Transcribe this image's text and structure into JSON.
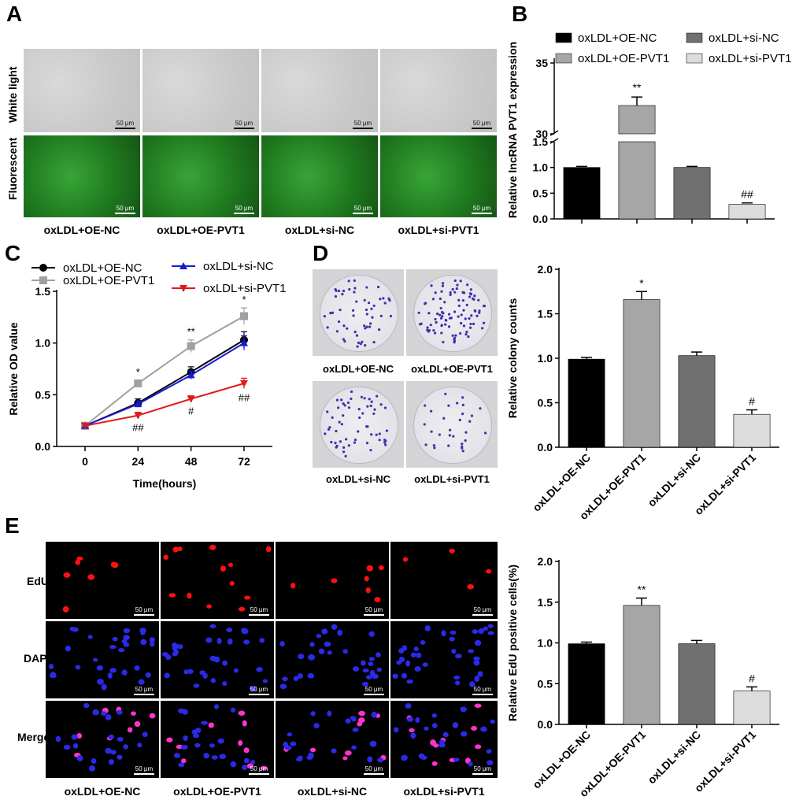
{
  "panels": {
    "A": {
      "label": "A",
      "rows": [
        "White light",
        "Fluorescent"
      ],
      "groups": [
        "oxLDL+OE-NC",
        "oxLDL+OE-PVT1",
        "oxLDL+si-NC",
        "oxLDL+si-PVT1"
      ],
      "scale_bar": "50 μm"
    },
    "B": {
      "label": "B"
    },
    "C": {
      "label": "C"
    },
    "D": {
      "label": "D",
      "dish_labels": [
        "oxLDL+OE-NC",
        "oxLDL+OE-PVT1",
        "oxLDL+si-NC",
        "oxLDL+si-PVT1"
      ]
    },
    "E": {
      "label": "E",
      "rows": [
        "EdU",
        "DAPI",
        "Merge"
      ],
      "groups": [
        "oxLDL+OE-NC",
        "oxLDL+OE-PVT1",
        "oxLDL+si-NC",
        "oxLDL+si-PVT1"
      ],
      "scale_bar": "50 μm"
    }
  },
  "colors": {
    "oe_nc": "#000000",
    "oe_pvt1": "#a6a6a6",
    "si_nc": "#707070",
    "si_pvt1": "#dcdcdc",
    "line_oe_pvt1": "#a0a0a0",
    "line_si_nc": "#1a1ad6",
    "line_si_pvt1": "#e01a1a"
  },
  "chart_data": [
    {
      "id": "B",
      "type": "bar",
      "ylabel": "Relative lncRNA PVT1 expression",
      "categories": [
        "oxLDL+OE-NC",
        "oxLDL+OE-PVT1",
        "oxLDL+si-NC",
        "oxLDL+si-PVT1"
      ],
      "values": [
        1.0,
        32.0,
        1.0,
        0.28
      ],
      "errors": [
        0.02,
        0.6,
        0.02,
        0.03
      ],
      "annotations": [
        "",
        "**",
        "",
        "##"
      ],
      "broken_axis": true,
      "lower_ticks": [
        "0.0",
        "0.5",
        "1.0",
        "1.5"
      ],
      "upper_ticks": [
        "30",
        "35"
      ],
      "legend": [
        "oxLDL+OE-NC",
        "oxLDL+OE-PVT1",
        "oxLDL+si-NC",
        "oxLDL+si-PVT1"
      ],
      "legend_position": "top"
    },
    {
      "id": "C",
      "type": "line",
      "xlabel": "Time(hours)",
      "ylabel": "Relative OD value",
      "x": [
        0,
        24,
        48,
        72
      ],
      "xticks": [
        "0",
        "24",
        "48",
        "72"
      ],
      "yticks": [
        "0.0",
        "0.5",
        "1.0",
        "1.5"
      ],
      "ylim": [
        0,
        1.5
      ],
      "series": [
        {
          "name": "oxLDL+OE-NC",
          "marker": "circle",
          "values": [
            0.2,
            0.42,
            0.72,
            1.03
          ],
          "errors": [
            0.02,
            0.04,
            0.05,
            0.08
          ]
        },
        {
          "name": "oxLDL+OE-PVT1",
          "marker": "square",
          "values": [
            0.2,
            0.61,
            0.97,
            1.26
          ],
          "errors": [
            0.02,
            0.03,
            0.06,
            0.08
          ]
        },
        {
          "name": "oxLDL+si-NC",
          "marker": "triangle-up",
          "values": [
            0.2,
            0.41,
            0.69,
            1.0
          ],
          "errors": [
            0.02,
            0.03,
            0.04,
            0.07
          ]
        },
        {
          "name": "oxLDL+si-PVT1",
          "marker": "triangle-down",
          "values": [
            0.2,
            0.3,
            0.46,
            0.61
          ],
          "errors": [
            0.02,
            0.03,
            0.03,
            0.05
          ]
        }
      ],
      "annotations": [
        {
          "x": 24,
          "text": "*",
          "pos": "above"
        },
        {
          "x": 24,
          "text": "##",
          "pos": "below"
        },
        {
          "x": 48,
          "text": "**",
          "pos": "above"
        },
        {
          "x": 48,
          "text": "#",
          "pos": "below"
        },
        {
          "x": 72,
          "text": "*",
          "pos": "above"
        },
        {
          "x": 72,
          "text": "##",
          "pos": "below"
        }
      ],
      "legend_position": "top"
    },
    {
      "id": "D",
      "type": "bar",
      "ylabel": "Relative colony counts",
      "categories": [
        "oxLDL+OE-NC",
        "oxLDL+OE-PVT1",
        "oxLDL+si-NC",
        "oxLDL+si-PVT1"
      ],
      "values": [
        0.99,
        1.66,
        1.03,
        0.37
      ],
      "errors": [
        0.02,
        0.09,
        0.04,
        0.05
      ],
      "annotations": [
        "",
        "*",
        "",
        "#"
      ],
      "yticks": [
        "0.0",
        "0.5",
        "1.0",
        "1.5",
        "2.0"
      ],
      "ylim": [
        0,
        2.0
      ]
    },
    {
      "id": "E",
      "type": "bar",
      "ylabel": "Relative EdU positive cells(%)",
      "categories": [
        "oxLDL+OE-NC",
        "oxLDL+OE-PVT1",
        "oxLDL+si-NC",
        "oxLDL+si-PVT1"
      ],
      "values": [
        0.99,
        1.46,
        0.99,
        0.41
      ],
      "errors": [
        0.02,
        0.09,
        0.04,
        0.05
      ],
      "annotations": [
        "",
        "**",
        "",
        "#"
      ],
      "yticks": [
        "0.0",
        "0.5",
        "1.0",
        "1.5",
        "2.0"
      ],
      "ylim": [
        0,
        2.0
      ]
    }
  ]
}
